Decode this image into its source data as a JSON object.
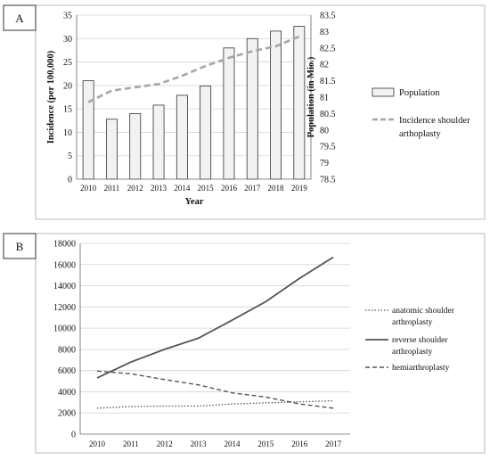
{
  "chart_data": [
    {
      "type": "bar",
      "panel_label": "A",
      "categories": [
        "2010",
        "2011",
        "2012",
        "2013",
        "2014",
        "2015",
        "2016",
        "2017",
        "2018",
        "2019"
      ],
      "xlabel": "Year",
      "ylabel": "Incidence (per 100,000)",
      "ylabel_right": "Population (in Mio.)",
      "ylim": [
        0,
        35
      ],
      "yticks": [
        "0",
        "5",
        "10",
        "15",
        "20",
        "25",
        "30",
        "35"
      ],
      "ylim_right": [
        78.5,
        83.5
      ],
      "yticks_right": [
        "78.5",
        "79",
        "79.5",
        "80",
        "80.5",
        "81",
        "81.5",
        "82",
        "82.5",
        "83",
        "83.5"
      ],
      "grid": true,
      "legend_position": "right",
      "bar_series": {
        "name": "Population",
        "values": [
          21,
          12.8,
          14,
          15.8,
          17.9,
          19.9,
          28,
          30,
          31.6,
          32.6
        ],
        "color": "#f2f2f2",
        "edge_color": "#333333"
      },
      "line_series": {
        "name": "Incidence shoulder arthoplasty",
        "legend_lines": [
          "Incidence shoulder",
          "arthoplasty"
        ],
        "axis": "right",
        "values": [
          80.85,
          81.2,
          81.3,
          81.4,
          81.65,
          81.95,
          82.2,
          82.4,
          82.55,
          82.85
        ],
        "color": "#a6a6a6",
        "style": "dashed"
      }
    },
    {
      "type": "line",
      "panel_label": "B",
      "categories": [
        "2010",
        "2011",
        "2012",
        "2013",
        "2014",
        "2015",
        "2016",
        "2017"
      ],
      "ylim": [
        0,
        18000
      ],
      "yticks": [
        "0",
        "2000",
        "4000",
        "6000",
        "8000",
        "10000",
        "12000",
        "14000",
        "16000",
        "18000"
      ],
      "grid": true,
      "legend_position": "right",
      "series": [
        {
          "name": "anatomic shoulder arthroplasty",
          "legend_lines": [
            "anatomic shoulder",
            "arthroplasty"
          ],
          "values": [
            2450,
            2600,
            2650,
            2650,
            2850,
            2950,
            3050,
            3150
          ],
          "color": "#555555",
          "style": "dotted"
        },
        {
          "name": "reverse shoulder arthroplasty",
          "legend_lines": [
            "reverse shoulder",
            "arthroplasty"
          ],
          "values": [
            5300,
            6800,
            8000,
            9050,
            10750,
            12500,
            14700,
            16700
          ],
          "color": "#555555",
          "style": "solid"
        },
        {
          "name": "hemiarthroplasty",
          "legend_lines": [
            "hemiarthroplasty"
          ],
          "values": [
            5950,
            5700,
            5150,
            4650,
            3900,
            3500,
            2850,
            2450
          ],
          "color": "#555555",
          "style": "dashed"
        }
      ]
    }
  ]
}
